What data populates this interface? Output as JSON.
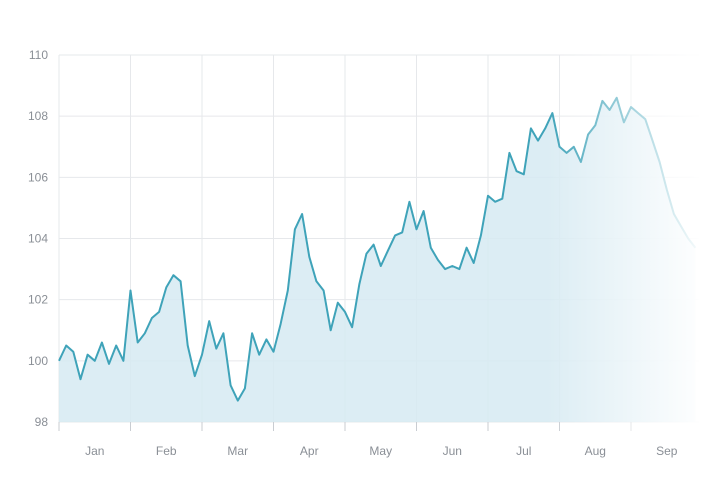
{
  "chart_data": {
    "type": "area",
    "title": "",
    "xlabel": "",
    "ylabel": "",
    "ylim": [
      98,
      110
    ],
    "y_ticks": [
      98,
      100,
      102,
      104,
      106,
      108,
      110
    ],
    "x_ticks": [
      "Jan",
      "Feb",
      "Mar",
      "Apr",
      "May",
      "Jun",
      "Jul",
      "Aug",
      "Sep"
    ],
    "grid": true,
    "colors": {
      "line": "#3fa3b9",
      "fill": "#d6eaf2",
      "grid": "#e6e8eb",
      "text": "#8a8f96"
    },
    "fade_right": true,
    "series": [
      {
        "x": [
          0.0,
          0.1,
          0.2,
          0.3,
          0.4,
          0.5,
          0.6,
          0.7,
          0.8,
          0.9,
          1.0,
          1.1,
          1.2,
          1.3,
          1.4,
          1.5,
          1.6,
          1.7,
          1.8,
          1.9,
          2.0,
          2.1,
          2.2,
          2.3,
          2.4,
          2.5,
          2.6,
          2.7,
          2.8,
          2.9,
          3.0,
          3.1,
          3.2,
          3.3,
          3.4,
          3.5,
          3.6,
          3.7,
          3.8,
          3.9,
          4.0,
          4.1,
          4.2,
          4.3,
          4.4,
          4.5,
          4.6,
          4.7,
          4.8,
          4.9,
          5.0,
          5.1,
          5.2,
          5.3,
          5.4,
          5.5,
          5.6,
          5.7,
          5.8,
          5.9,
          6.0,
          6.1,
          6.2,
          6.3,
          6.4,
          6.5,
          6.6,
          6.7,
          6.8,
          6.9,
          7.0,
          7.1,
          7.2,
          7.3,
          7.4,
          7.5,
          7.6,
          7.7,
          7.8,
          7.9,
          8.0,
          8.1,
          8.2,
          8.3,
          8.4,
          8.5,
          8.6,
          8.7,
          8.8,
          8.9
        ],
        "y": [
          100.0,
          100.5,
          100.3,
          99.4,
          100.2,
          100.0,
          100.6,
          99.9,
          100.5,
          100.0,
          102.3,
          100.6,
          100.9,
          101.4,
          101.6,
          102.4,
          102.8,
          102.6,
          100.5,
          99.5,
          100.2,
          101.3,
          100.4,
          100.9,
          99.2,
          98.7,
          99.1,
          100.9,
          100.2,
          100.7,
          100.3,
          101.2,
          102.3,
          104.3,
          104.8,
          103.4,
          102.6,
          102.3,
          101.0,
          101.9,
          101.6,
          101.1,
          102.5,
          103.5,
          103.8,
          103.1,
          103.6,
          104.1,
          104.2,
          105.2,
          104.3,
          104.9,
          103.7,
          103.3,
          103.0,
          103.1,
          103.0,
          103.7,
          103.2,
          104.1,
          105.4,
          105.2,
          105.3,
          106.8,
          106.2,
          106.1,
          107.6,
          107.2,
          107.6,
          108.1,
          107.0,
          106.8,
          107.0,
          106.5,
          107.4,
          107.7,
          108.5,
          108.2,
          108.6,
          107.8,
          108.3,
          108.1,
          107.9,
          107.2,
          106.5,
          105.6,
          104.8,
          104.4,
          104.0,
          103.7
        ]
      }
    ]
  }
}
